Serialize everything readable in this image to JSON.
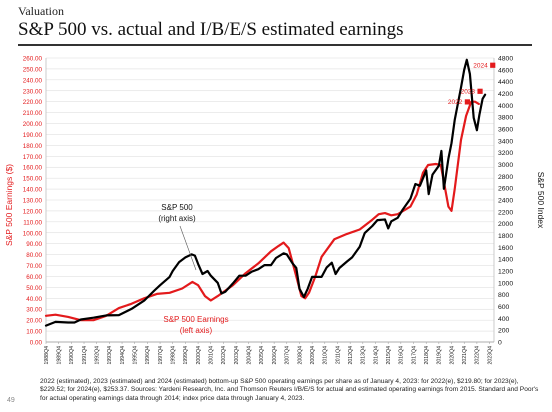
{
  "header": {
    "kicker": "Valuation",
    "title": "S&P 500 vs. actual and I/B/E/S estimated earnings"
  },
  "colors": {
    "earnings": "#e31a1c",
    "index": "#000000",
    "estimate": "#e31a1c"
  },
  "chart_data": {
    "type": "line",
    "xlabel": "",
    "ylabel_left": "S&P 500 Earnings ($)",
    "ylabel_right": "S&P 500 Index",
    "ylim_left": [
      0,
      260
    ],
    "ylim_right": [
      0,
      4800
    ],
    "left_ticks": [
      "0.00",
      "10.00",
      "20.00",
      "30.00",
      "40.00",
      "50.00",
      "60.00",
      "70.00",
      "80.00",
      "90.00",
      "100.00",
      "110.00",
      "120.00",
      "130.00",
      "140.00",
      "150.00",
      "160.00",
      "170.00",
      "180.00",
      "190.00",
      "200.00",
      "210.00",
      "220.00",
      "230.00",
      "240.00",
      "250.00",
      "260.00"
    ],
    "right_ticks": [
      "0",
      "200",
      "400",
      "600",
      "800",
      "1000",
      "1200",
      "1400",
      "1600",
      "1800",
      "2000",
      "2200",
      "2400",
      "2600",
      "2800",
      "3000",
      "3200",
      "3400",
      "3600",
      "3800",
      "4000",
      "4200",
      "4400",
      "4600",
      "4800"
    ],
    "x_ticks": [
      "1988Q4",
      "1989Q4",
      "1990Q4",
      "1991Q4",
      "1992Q4",
      "1993Q4",
      "1994Q4",
      "1995Q4",
      "1996Q4",
      "1997Q4",
      "1998Q4",
      "1999Q4",
      "2000Q4",
      "2001Q4",
      "2002Q4",
      "2003Q4",
      "2004Q4",
      "2005Q4",
      "2006Q4",
      "2007Q4",
      "2008Q4",
      "2009Q4",
      "2010Q4",
      "2011Q4",
      "2012Q4",
      "2013Q4",
      "2014Q4",
      "2015Q4",
      "2016Q4",
      "2017Q4",
      "2018Q4",
      "2019Q4",
      "2020Q4",
      "2021Q4",
      "2022Q4",
      "2023Q4"
    ],
    "x_range": [
      1988.75,
      2024.1
    ],
    "series": [
      {
        "name": "S&P 500 Earnings",
        "axis": "left",
        "points": [
          [
            1988.75,
            24
          ],
          [
            1989.5,
            25
          ],
          [
            1990.5,
            23
          ],
          [
            1991.5,
            20
          ],
          [
            1992.5,
            20
          ],
          [
            1993.5,
            24
          ],
          [
            1994.5,
            31
          ],
          [
            1995.5,
            35
          ],
          [
            1996.5,
            40
          ],
          [
            1997.5,
            44
          ],
          [
            1998.5,
            45
          ],
          [
            1999.5,
            49
          ],
          [
            2000.3,
            55
          ],
          [
            2000.75,
            52
          ],
          [
            2001.3,
            42
          ],
          [
            2001.75,
            38
          ],
          [
            2002.3,
            42
          ],
          [
            2002.9,
            47
          ],
          [
            2003.5,
            52
          ],
          [
            2004.5,
            63
          ],
          [
            2005.5,
            72
          ],
          [
            2006.5,
            83
          ],
          [
            2007.1,
            88
          ],
          [
            2007.5,
            91
          ],
          [
            2007.9,
            86
          ],
          [
            2008.5,
            60
          ],
          [
            2008.9,
            42
          ],
          [
            2009.2,
            40
          ],
          [
            2009.5,
            45
          ],
          [
            2010.0,
            60
          ],
          [
            2010.5,
            78
          ],
          [
            2011.5,
            94
          ],
          [
            2012.5,
            99
          ],
          [
            2013.5,
            103
          ],
          [
            2014.5,
            112
          ],
          [
            2015.0,
            117
          ],
          [
            2015.5,
            118
          ],
          [
            2016.0,
            116
          ],
          [
            2016.5,
            117
          ],
          [
            2017.5,
            124
          ],
          [
            2018.0,
            135
          ],
          [
            2018.5,
            155
          ],
          [
            2018.9,
            162
          ],
          [
            2019.5,
            163
          ],
          [
            2019.9,
            162
          ],
          [
            2020.25,
            140
          ],
          [
            2020.5,
            124
          ],
          [
            2020.75,
            120
          ],
          [
            2021.0,
            140
          ],
          [
            2021.5,
            185
          ],
          [
            2021.9,
            207
          ],
          [
            2022.3,
            220
          ],
          [
            2022.6,
            220
          ],
          [
            2022.9,
            218
          ]
        ]
      },
      {
        "name": "S&P 500",
        "axis": "right",
        "points": [
          [
            1988.75,
            277
          ],
          [
            1989.5,
            340
          ],
          [
            1990.5,
            330
          ],
          [
            1991.0,
            330
          ],
          [
            1991.5,
            380
          ],
          [
            1992.5,
            410
          ],
          [
            1993.5,
            450
          ],
          [
            1994.5,
            455
          ],
          [
            1995.5,
            560
          ],
          [
            1996.5,
            700
          ],
          [
            1997.3,
            870
          ],
          [
            1997.75,
            960
          ],
          [
            1998.5,
            1100
          ],
          [
            1998.75,
            1200
          ],
          [
            1999.25,
            1350
          ],
          [
            1999.75,
            1430
          ],
          [
            2000.25,
            1480
          ],
          [
            2000.5,
            1460
          ],
          [
            2000.75,
            1320
          ],
          [
            2001.1,
            1150
          ],
          [
            2001.5,
            1200
          ],
          [
            2001.75,
            1120
          ],
          [
            2002.3,
            1000
          ],
          [
            2002.6,
            820
          ],
          [
            2002.9,
            850
          ],
          [
            2003.5,
            990
          ],
          [
            2004.0,
            1120
          ],
          [
            2004.5,
            1120
          ],
          [
            2005.0,
            1190
          ],
          [
            2005.5,
            1230
          ],
          [
            2006.0,
            1300
          ],
          [
            2006.5,
            1300
          ],
          [
            2006.9,
            1420
          ],
          [
            2007.5,
            1500
          ],
          [
            2007.75,
            1480
          ],
          [
            2008.2,
            1330
          ],
          [
            2008.5,
            1250
          ],
          [
            2008.75,
            900
          ],
          [
            2009.1,
            760
          ],
          [
            2009.4,
            900
          ],
          [
            2009.75,
            1100
          ],
          [
            2010.5,
            1100
          ],
          [
            2010.9,
            1260
          ],
          [
            2011.3,
            1340
          ],
          [
            2011.6,
            1150
          ],
          [
            2011.9,
            1250
          ],
          [
            2012.5,
            1360
          ],
          [
            2012.9,
            1430
          ],
          [
            2013.5,
            1610
          ],
          [
            2013.9,
            1840
          ],
          [
            2014.5,
            1960
          ],
          [
            2014.9,
            2060
          ],
          [
            2015.5,
            2070
          ],
          [
            2015.75,
            1920
          ],
          [
            2016.0,
            2040
          ],
          [
            2016.5,
            2100
          ],
          [
            2016.9,
            2240
          ],
          [
            2017.5,
            2420
          ],
          [
            2017.9,
            2670
          ],
          [
            2018.25,
            2640
          ],
          [
            2018.75,
            2900
          ],
          [
            2018.95,
            2500
          ],
          [
            2019.25,
            2830
          ],
          [
            2019.75,
            2980
          ],
          [
            2019.95,
            3230
          ],
          [
            2020.15,
            2590
          ],
          [
            2020.5,
            3100
          ],
          [
            2020.75,
            3360
          ],
          [
            2021.0,
            3750
          ],
          [
            2021.5,
            4300
          ],
          [
            2021.75,
            4600
          ],
          [
            2021.95,
            4770
          ],
          [
            2022.2,
            4530
          ],
          [
            2022.5,
            3790
          ],
          [
            2022.75,
            3580
          ],
          [
            2022.95,
            3840
          ],
          [
            2023.2,
            4110
          ],
          [
            2023.4,
            4180
          ]
        ]
      }
    ],
    "estimates": [
      {
        "label": "2022",
        "year": 2022,
        "value": 219.8
      },
      {
        "label": "2023",
        "year": 2023,
        "value": 229.52
      },
      {
        "label": "2024",
        "year": 2024,
        "value": 253.37
      }
    ],
    "annotations": [
      {
        "id": "sp500-label",
        "lines": [
          "S&P 500",
          "(right axis)"
        ]
      },
      {
        "id": "earnings-label",
        "lines": [
          "S&P 500 Earnings",
          "(left axis)"
        ]
      }
    ]
  },
  "footnote": "2022 (estimated), 2023 (estimated) and 2024 (estimated) bottom-up S&P 500 operating earnings per share as of January 4, 2023: for 2022(e), $219.80; for 2023(e), $229.52; for 2024(e), $253.37. Sources: Yardeni Research, Inc. and Thomson Reuters I/B/E/S for actual and estimated operating earnings from 2015. Standard and Poor's for actual operating earnings data through 2014; index price data through January 4, 2023.",
  "page_number": "49"
}
